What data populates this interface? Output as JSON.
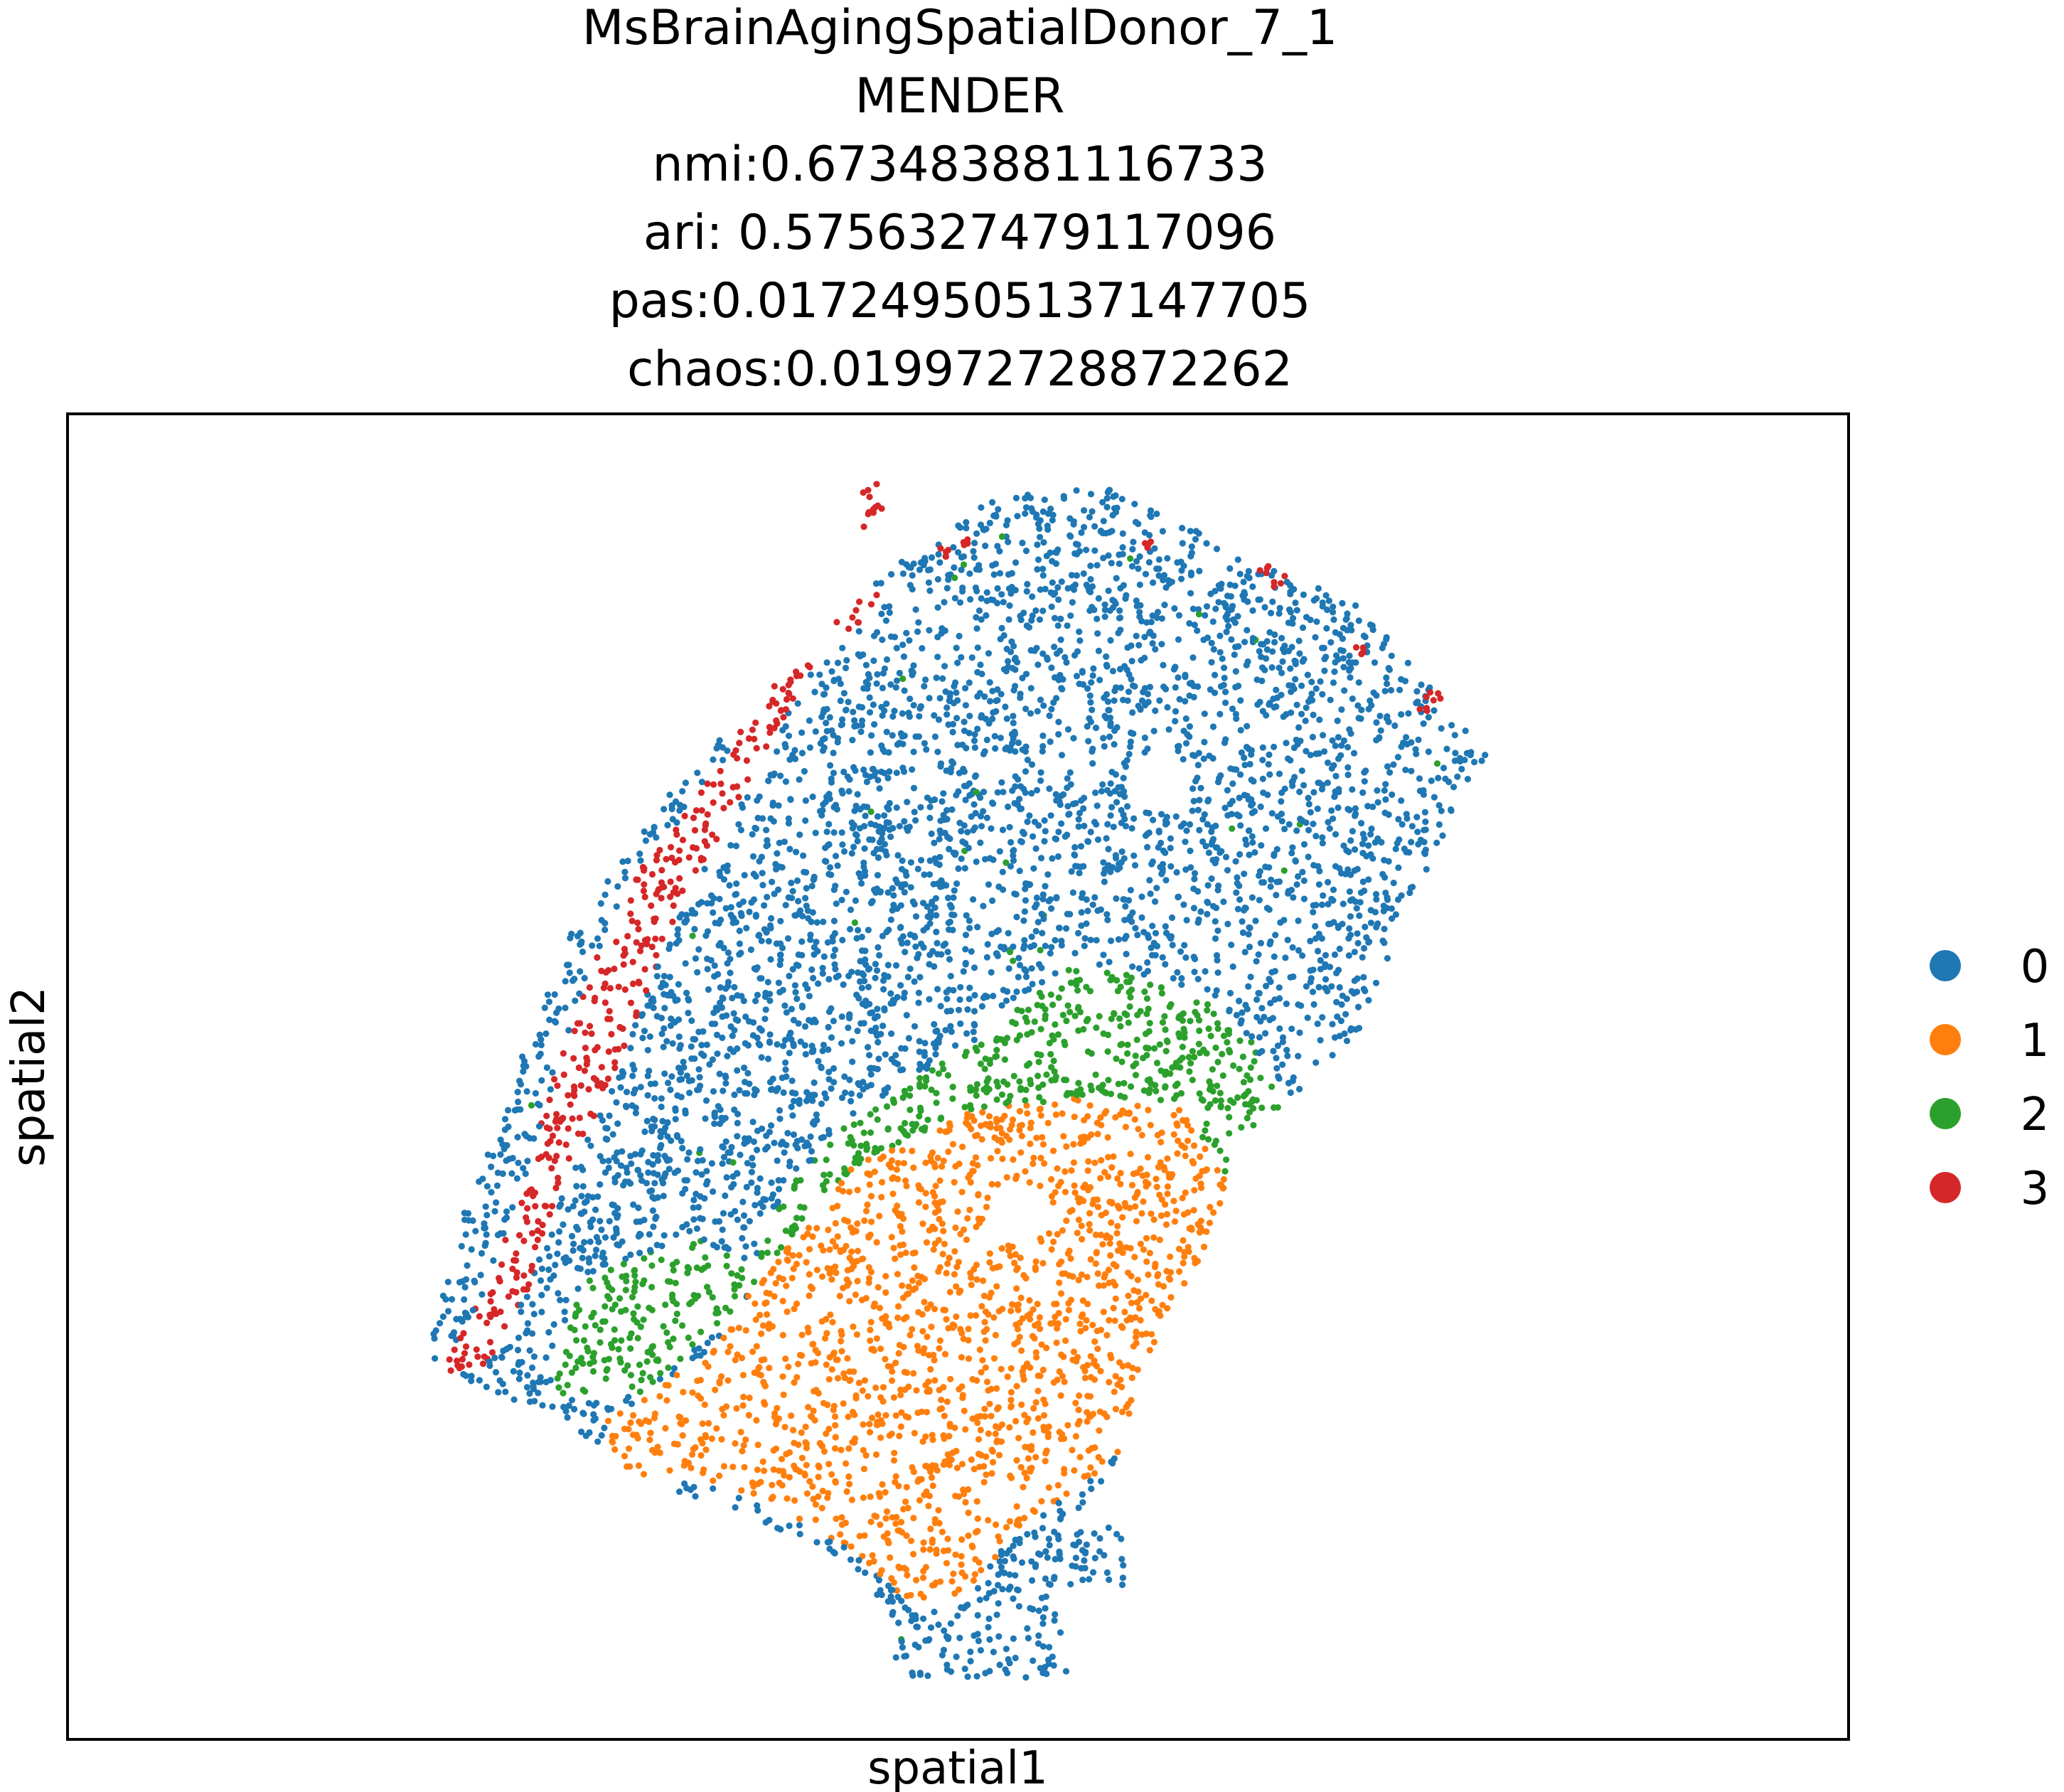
{
  "chart_data": {
    "type": "scatter",
    "title_lines": [
      "MsBrainAgingSpatialDonor_7_1",
      "MENDER",
      "nmi:0.673483881116733",
      "ari: 0.5756327479117096",
      "pas:0.017249505137147705",
      "chaos:0.019972728872262"
    ],
    "xlabel": "spatial1",
    "ylabel": "spatial2",
    "grid": false,
    "ticks": false,
    "legend_position": "right",
    "colors": {
      "0": "#1f77b4",
      "1": "#ff7f0e",
      "2": "#2ca02c",
      "3": "#d62728"
    },
    "legend": [
      {
        "name": "0",
        "color": "#1f77b4"
      },
      {
        "name": "1",
        "color": "#ff7f0e"
      },
      {
        "name": "2",
        "color": "#2ca02c"
      },
      {
        "name": "3",
        "color": "#d62728"
      }
    ]
  }
}
